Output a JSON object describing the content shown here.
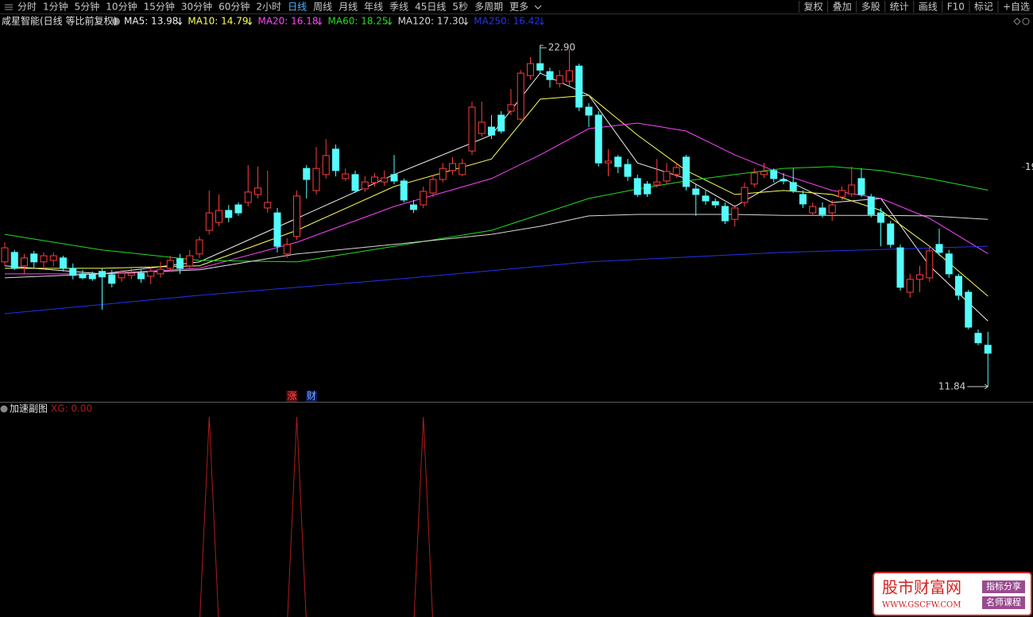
{
  "toolbar": {
    "periods": [
      "分时",
      "1分钟",
      "5分钟",
      "10分钟",
      "15分钟",
      "30分钟",
      "60分钟",
      "2小时",
      "日线",
      "周线",
      "月线",
      "年线",
      "季线",
      "45日线",
      "5秒",
      "多周期",
      "更多"
    ],
    "active": 8,
    "tools": [
      "复权",
      "叠加",
      "多股",
      "统计",
      "画线",
      "F10",
      "标记",
      "+自选"
    ]
  },
  "chart_data": [
    {
      "type": "candlestick",
      "title": "咸星智能(日线 等比前复权)",
      "up_color": "#ff3c3c",
      "down_color": "#54fcfc",
      "open": [
        15.91,
        16.22,
        15.78,
        16.17,
        15.91,
        15.96,
        16.04,
        15.7,
        15.52,
        15.49,
        15.6,
        15.49,
        15.39,
        15.47,
        15.54,
        15.44,
        15.52,
        15.7,
        16.01,
        15.78,
        16.17,
        16.94,
        17.2,
        17.59,
        17.77,
        17.85,
        18.11,
        17.67,
        17.51,
        16.17,
        16.74,
        18.96,
        18.24,
        18.76,
        19.59,
        18.63,
        18.76,
        18.29,
        18.5,
        18.52,
        18.76,
        18.55,
        17.77,
        17.77,
        18.16,
        18.6,
        18.89,
        18.76,
        19.53,
        20.1,
        20.31,
        20.7,
        20.83,
        20.57,
        21.99,
        22.38,
        22.12,
        21.73,
        21.81,
        22.3,
        20.96,
        20.7,
        19.14,
        19.33,
        19.09,
        18.63,
        18.45,
        18.42,
        18.55,
        18.76,
        19.33,
        18.29,
        18.06,
        17.88,
        17.72,
        17.3,
        17.85,
        18.45,
        18.76,
        18.89,
        18.6,
        18.5,
        18.11,
        17.51,
        17.67,
        17.51,
        18.03,
        18.13,
        18.63,
        18.03,
        17.51,
        17.15,
        16.37,
        14.92,
        15.34,
        15.39,
        16.48,
        16.17,
        15.44,
        14.92,
        13.58,
        13.19
      ],
      "high": [
        16.55,
        16.3,
        16.17,
        16.27,
        16.22,
        16.22,
        16.11,
        15.86,
        15.65,
        15.6,
        15.7,
        15.65,
        15.65,
        15.7,
        15.65,
        15.75,
        15.91,
        16.11,
        16.17,
        16.3,
        16.74,
        18.24,
        18.11,
        17.77,
        17.85,
        19.07,
        19.02,
        18.89,
        17.67,
        16.68,
        18.24,
        19.07,
        19.66,
        19.92,
        19.74,
        18.96,
        18.89,
        18.7,
        18.81,
        18.89,
        19.4,
        18.63,
        17.93,
        18.37,
        18.76,
        19.14,
        19.33,
        19.27,
        21.14,
        21.14,
        20.7,
        20.83,
        21.55,
        22.17,
        22.59,
        22.9,
        22.25,
        22.17,
        22.85,
        22.38,
        21.09,
        20.83,
        19.59,
        19.4,
        19.27,
        18.76,
        18.55,
        19.27,
        19.14,
        19.14,
        19.4,
        18.45,
        18.24,
        17.98,
        17.85,
        17.77,
        18.5,
        18.96,
        19.14,
        18.96,
        18.81,
        18.96,
        18.24,
        17.85,
        17.85,
        17.93,
        18.37,
        19.02,
        18.96,
        18.13,
        17.67,
        17.25,
        16.48,
        15.52,
        15.78,
        16.42,
        17.0,
        16.3,
        15.52,
        15.0,
        13.71,
        13.63
      ],
      "low": [
        15.78,
        15.65,
        15.52,
        15.7,
        15.65,
        15.78,
        15.6,
        15.34,
        15.34,
        15.29,
        14.35,
        15.08,
        15.26,
        15.34,
        15.23,
        15.18,
        15.39,
        15.6,
        15.52,
        15.7,
        16.04,
        16.81,
        17.07,
        17.2,
        17.41,
        17.72,
        17.98,
        17.51,
        16.22,
        16.04,
        16.63,
        17.98,
        18.11,
        18.63,
        18.7,
        18.55,
        18.16,
        18.19,
        18.37,
        18.39,
        18.44,
        17.85,
        17.51,
        17.67,
        18.03,
        18.5,
        18.76,
        18.7,
        19.4,
        20.0,
        19.92,
        20.1,
        20.7,
        20.52,
        21.86,
        22.07,
        21.6,
        21.6,
        21.66,
        20.83,
        20.31,
        19.02,
        18.7,
        18.81,
        18.55,
        18.03,
        18.03,
        18.34,
        18.44,
        18.65,
        18.24,
        17.41,
        17.77,
        17.67,
        17.15,
        17.07,
        17.72,
        18.34,
        18.65,
        18.5,
        18.44,
        18.16,
        17.67,
        17.41,
        17.36,
        17.25,
        17.93,
        18.03,
        18.03,
        17.36,
        16.42,
        16.37,
        14.97,
        14.74,
        14.92,
        15.26,
        16.11,
        15.39,
        14.66,
        13.71,
        13.19,
        11.84
      ],
      "close": [
        16.37,
        15.7,
        16.04,
        15.91,
        16.11,
        16.11,
        15.7,
        15.47,
        15.39,
        15.36,
        15.42,
        15.21,
        15.54,
        15.54,
        15.36,
        15.6,
        15.67,
        15.96,
        15.7,
        16.11,
        16.63,
        17.51,
        17.59,
        17.36,
        17.51,
        18.19,
        18.32,
        17.85,
        16.42,
        16.48,
        18.06,
        18.6,
        18.96,
        19.38,
        18.89,
        18.78,
        18.24,
        18.52,
        18.68,
        18.65,
        18.55,
        17.93,
        17.62,
        18.21,
        18.6,
        18.96,
        19.12,
        19.12,
        20.96,
        20.47,
        20.05,
        20.18,
        21.04,
        22.07,
        22.38,
        22.17,
        21.86,
        21.99,
        22.15,
        20.96,
        20.7,
        19.14,
        19.2,
        19.02,
        18.7,
        18.11,
        18.13,
        18.52,
        18.86,
        18.99,
        18.37,
        18.11,
        17.9,
        17.77,
        17.25,
        17.67,
        18.34,
        18.81,
        18.86,
        18.63,
        18.55,
        18.24,
        17.8,
        17.72,
        17.46,
        17.77,
        18.24,
        18.42,
        18.11,
        17.46,
        17.2,
        16.48,
        15.08,
        15.34,
        15.49,
        16.27,
        16.22,
        15.52,
        14.82,
        13.78,
        13.27,
        12.93
      ],
      "series": [
        {
          "name": "MA5: 13.98",
          "color": "#f0f0f0",
          "x": [
            0,
            10,
            20,
            30,
            40,
            50,
            55,
            60,
            65,
            70,
            75,
            80,
            85,
            90,
            95,
            101
          ],
          "values": [
            15.78,
            15.52,
            15.91,
            17.33,
            18.76,
            20.05,
            22.07,
            21.35,
            19.14,
            18.63,
            17.72,
            18.63,
            17.85,
            17.98,
            15.78,
            13.98
          ]
        },
        {
          "name": "MA10: 14.79",
          "color": "#ffff55",
          "x": [
            0,
            10,
            20,
            30,
            40,
            50,
            55,
            60,
            65,
            70,
            75,
            80,
            85,
            90,
            95,
            101
          ],
          "values": [
            15.7,
            15.7,
            15.78,
            16.94,
            18.37,
            19.27,
            21.22,
            21.35,
            20.05,
            18.89,
            18.11,
            18.24,
            18.11,
            17.59,
            16.42,
            14.79
          ]
        },
        {
          "name": "MA20: 16.18",
          "color": "#ff44ff",
          "x": [
            0,
            10,
            20,
            30,
            40,
            50,
            55,
            60,
            65,
            70,
            75,
            80,
            85,
            90,
            95,
            101
          ],
          "values": [
            15.52,
            15.52,
            15.7,
            16.55,
            17.72,
            18.63,
            19.4,
            20.26,
            20.44,
            20.18,
            19.4,
            18.76,
            18.24,
            17.98,
            17.33,
            16.18
          ]
        },
        {
          "name": "MA60: 18.25",
          "color": "#22dd22",
          "x": [
            0,
            10,
            20,
            30,
            40,
            50,
            55,
            60,
            65,
            70,
            75,
            80,
            85,
            90,
            95,
            101
          ],
          "values": [
            16.81,
            16.3,
            15.96,
            15.91,
            16.42,
            16.94,
            17.46,
            17.98,
            18.29,
            18.55,
            18.76,
            18.96,
            19.02,
            18.89,
            18.63,
            18.25
          ]
        },
        {
          "name": "MA120: 17.30",
          "color": "#d8d8d8",
          "x": [
            0,
            10,
            20,
            30,
            40,
            50,
            55,
            60,
            65,
            70,
            75,
            80,
            85,
            90,
            95,
            101
          ],
          "values": [
            15.39,
            15.52,
            15.65,
            16.17,
            16.48,
            16.81,
            17.07,
            17.41,
            17.46,
            17.46,
            17.46,
            17.43,
            17.43,
            17.43,
            17.41,
            17.3
          ]
        },
        {
          "name": "MA250: 16.42",
          "color": "#2233ee",
          "x": [
            0,
            20,
            40,
            60,
            80,
            101
          ],
          "values": [
            14.22,
            14.82,
            15.34,
            15.91,
            16.22,
            16.42
          ]
        }
      ],
      "ylim": [
        11.37,
        23.55
      ],
      "yticks": [
        19
      ],
      "annotations": [
        {
          "label": "22.90",
          "value": 22.9,
          "index": 55
        },
        {
          "label": "11.84",
          "value": 11.84,
          "index": 101
        }
      ],
      "markers": [
        {
          "text": "涨",
          "index": 30
        },
        {
          "text": "财",
          "index": 32
        }
      ]
    },
    {
      "type": "line",
      "title": "加速副图",
      "series": [
        {
          "name": "XG: 0.00",
          "color": "#b01c1c",
          "x": [
            0,
            20,
            21,
            22,
            29,
            30,
            31,
            42,
            43,
            44,
            101
          ],
          "values": [
            0,
            0,
            1,
            0,
            0,
            1,
            0,
            0,
            1,
            0,
            0
          ]
        }
      ],
      "ylim": [
        0,
        1
      ]
    }
  ],
  "watermark": {
    "name": "股市财富网",
    "url": "WWW.GSCFW.COM",
    "tags": [
      "指标分享",
      "名师课程"
    ]
  }
}
